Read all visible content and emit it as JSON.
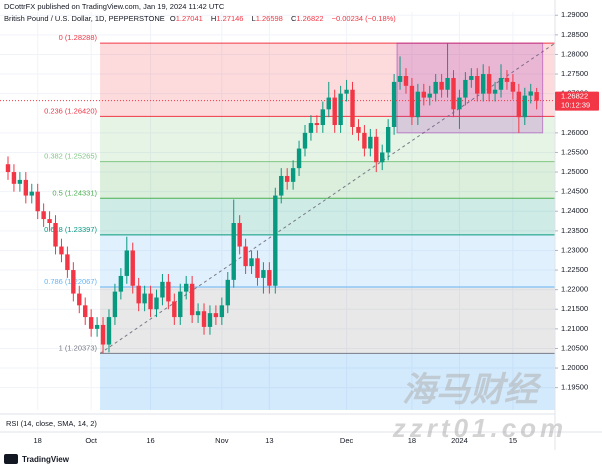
{
  "chart_data": {
    "type": "candlestick",
    "publisher": "DCottrFX published on TradingView.com, Jan 19, 2024 11:42 UTC",
    "title": "British Pound / U.S. Dollar, 1D, PEPPERSTONE",
    "ohlc_letters": [
      "O",
      "H",
      "L",
      "C"
    ],
    "change": "−0.00234 (−0.18%)",
    "countdown": "10:12:39",
    "indicator": "RSI (14, close, SMA, 14, 2)",
    "brand": "TradingView",
    "watermark": [
      "海马财经",
      "zzrt01.com"
    ],
    "up_color": "#089981",
    "down_color": "#f23645",
    "open": [
      1.252,
      1.25,
      1.247,
      1.248,
      1.244,
      1.245,
      1.24,
      1.238,
      1.237,
      1.231,
      1.229,
      1.225,
      1.219,
      1.216,
      1.213,
      1.21,
      1.211,
      1.206,
      1.213,
      1.2195,
      1.2235,
      1.23,
      1.221,
      1.2165,
      1.219,
      1.215,
      1.218,
      1.222,
      1.217,
      1.213,
      1.2195,
      1.2215,
      1.2135,
      1.2145,
      1.2105,
      1.214,
      1.213,
      1.216,
      1.2225,
      1.237,
      1.231,
      1.226,
      1.228,
      1.223,
      1.225,
      1.221,
      1.244,
      1.249,
      1.2475,
      1.251,
      1.256,
      1.26,
      1.2625,
      1.262,
      1.266,
      1.269,
      1.262,
      1.27,
      1.271,
      1.2615,
      1.26,
      1.256,
      1.259,
      1.2525,
      1.255,
      1.2615,
      1.273,
      1.2745,
      1.272,
      1.264,
      1.2705,
      1.269,
      1.27,
      1.273,
      1.271,
      1.274,
      1.266,
      1.269,
      1.2735,
      1.2745,
      1.27,
      1.275,
      1.27,
      1.271,
      1.274,
      1.273,
      1.2705,
      1.264,
      1.2695,
      1.27041
    ],
    "high": [
      1.254,
      1.252,
      1.25,
      1.25,
      1.247,
      1.247,
      1.242,
      1.24,
      1.239,
      1.233,
      1.231,
      1.227,
      1.221,
      1.218,
      1.215,
      1.213,
      1.213,
      1.215,
      1.2215,
      1.2255,
      1.2335,
      1.232,
      1.223,
      1.221,
      1.221,
      1.22,
      1.224,
      1.224,
      1.219,
      1.2215,
      1.2235,
      1.2235,
      1.2165,
      1.2165,
      1.216,
      1.216,
      1.218,
      1.2245,
      1.243,
      1.239,
      1.233,
      1.23,
      1.23,
      1.227,
      1.227,
      1.246,
      1.251,
      1.251,
      1.253,
      1.258,
      1.262,
      1.2645,
      1.2645,
      1.268,
      1.273,
      1.271,
      1.272,
      1.2735,
      1.273,
      1.2635,
      1.262,
      1.261,
      1.261,
      1.257,
      1.2635,
      1.275,
      1.2795,
      1.2765,
      1.274,
      1.2725,
      1.2725,
      1.272,
      1.275,
      1.275,
      1.28288,
      1.276,
      1.271,
      1.2755,
      1.2765,
      1.2765,
      1.2775,
      1.277,
      1.273,
      1.2775,
      1.276,
      1.275,
      1.2725,
      1.2715,
      1.2725,
      1.27146
    ],
    "low": [
      1.248,
      1.245,
      1.245,
      1.242,
      1.242,
      1.238,
      1.236,
      1.235,
      1.229,
      1.227,
      1.223,
      1.217,
      1.214,
      1.211,
      1.208,
      1.208,
      1.20373,
      1.204,
      1.211,
      1.2175,
      1.2215,
      1.219,
      1.2145,
      1.2145,
      1.213,
      1.213,
      1.216,
      1.215,
      1.211,
      1.211,
      1.2175,
      1.2115,
      1.2115,
      1.2085,
      1.2085,
      1.211,
      1.211,
      1.214,
      1.2205,
      1.229,
      1.224,
      1.224,
      1.221,
      1.219,
      1.219,
      1.219,
      1.242,
      1.2455,
      1.2455,
      1.249,
      1.254,
      1.258,
      1.26,
      1.26,
      1.264,
      1.26,
      1.26,
      1.268,
      1.2595,
      1.258,
      1.254,
      1.254,
      1.25,
      1.2505,
      1.253,
      1.2595,
      1.271,
      1.27,
      1.262,
      1.262,
      1.267,
      1.267,
      1.268,
      1.269,
      1.269,
      1.264,
      1.261,
      1.267,
      1.2715,
      1.268,
      1.268,
      1.268,
      1.268,
      1.269,
      1.271,
      1.2685,
      1.26,
      1.262,
      1.2675,
      1.26598
    ],
    "close": [
      1.25,
      1.247,
      1.248,
      1.244,
      1.245,
      1.24,
      1.238,
      1.237,
      1.231,
      1.229,
      1.225,
      1.219,
      1.216,
      1.213,
      1.21,
      1.211,
      1.206,
      1.213,
      1.2195,
      1.2235,
      1.23,
      1.221,
      1.2165,
      1.219,
      1.215,
      1.218,
      1.222,
      1.217,
      1.213,
      1.2195,
      1.2215,
      1.2135,
      1.2145,
      1.2105,
      1.214,
      1.213,
      1.216,
      1.2225,
      1.237,
      1.231,
      1.226,
      1.228,
      1.223,
      1.225,
      1.221,
      1.244,
      1.249,
      1.2475,
      1.251,
      1.256,
      1.26,
      1.2625,
      1.262,
      1.266,
      1.269,
      1.262,
      1.27,
      1.271,
      1.2615,
      1.26,
      1.256,
      1.259,
      1.2525,
      1.255,
      1.2615,
      1.273,
      1.2745,
      1.272,
      1.264,
      1.2705,
      1.269,
      1.27,
      1.273,
      1.271,
      1.274,
      1.266,
      1.269,
      1.2735,
      1.2745,
      1.27,
      1.275,
      1.27,
      1.271,
      1.274,
      1.273,
      1.2705,
      1.264,
      1.2695,
      1.27056,
      1.26822
    ],
    "xticks": [
      {
        "value": 5,
        "label": "18"
      },
      {
        "value": 14,
        "label": "Oct"
      },
      {
        "value": 24,
        "label": "16"
      },
      {
        "value": 36,
        "label": "Nov"
      },
      {
        "value": 44,
        "label": "13"
      },
      {
        "value": 57,
        "label": "Dec"
      },
      {
        "value": 68,
        "label": "18"
      },
      {
        "value": 76,
        "label": "2024"
      },
      {
        "value": 85,
        "label": "15"
      }
    ],
    "ylim": [
      1.1893,
      1.2918
    ],
    "yticks": [
      {
        "value": 1.29,
        "label": "1.29000"
      },
      {
        "value": 1.285,
        "label": "1.28500"
      },
      {
        "value": 1.28,
        "label": "1.28000"
      },
      {
        "value": 1.275,
        "label": "1.27500"
      },
      {
        "value": 1.27,
        "label": "1.27000"
      },
      {
        "value": 1.26,
        "label": "1.26000"
      },
      {
        "value": 1.255,
        "label": "1.25500"
      },
      {
        "value": 1.25,
        "label": "1.25000"
      },
      {
        "value": 1.245,
        "label": "1.24500"
      },
      {
        "value": 1.24,
        "label": "1.24000"
      },
      {
        "value": 1.235,
        "label": "1.23500"
      },
      {
        "value": 1.23,
        "label": "1.23000"
      },
      {
        "value": 1.225,
        "label": "1.22500"
      },
      {
        "value": 1.22,
        "label": "1.22000"
      },
      {
        "value": 1.215,
        "label": "1.21500"
      },
      {
        "value": 1.21,
        "label": "1.21000"
      },
      {
        "value": 1.205,
        "label": "1.20500"
      },
      {
        "value": 1.2,
        "label": "1.20000"
      },
      {
        "value": 1.195,
        "label": "1.19500"
      }
    ],
    "fib_start": 16,
    "fib_levels": [
      {
        "price": 1.28288,
        "label": "0 (1.28288)",
        "color": "#f23645",
        "fill": "rgba(242,54,69,0.18)"
      },
      {
        "price": 1.2642,
        "label": "0.236 (1.26420)",
        "color": "#f23645",
        "fill": "rgba(129,199,132,0.2)"
      },
      {
        "price": 1.25265,
        "label": "0.382 (1.25265)",
        "color": "#81c784",
        "fill": "rgba(76,175,80,0.2)"
      },
      {
        "price": 1.24331,
        "label": "0.5 (1.24331)",
        "color": "#4caf50",
        "fill": "rgba(8,153,129,0.2)"
      },
      {
        "price": 1.23397,
        "label": "0.618 (1.23397)",
        "color": "#089981",
        "fill": "rgba(100,181,246,0.2)"
      },
      {
        "price": 1.22067,
        "label": "0.786 (1.22067)",
        "color": "#64b5f6",
        "fill": "rgba(150,150,150,0.22)"
      },
      {
        "price": 1.20373,
        "label": "1 (1.20373)",
        "color": "#787b86",
        "fill": "rgba(33,150,243,0.2)"
      }
    ],
    "range_box": {
      "start": 66,
      "top": 1.28288,
      "bottom": 1.26,
      "fill": "rgba(156,39,176,0.2)"
    }
  }
}
